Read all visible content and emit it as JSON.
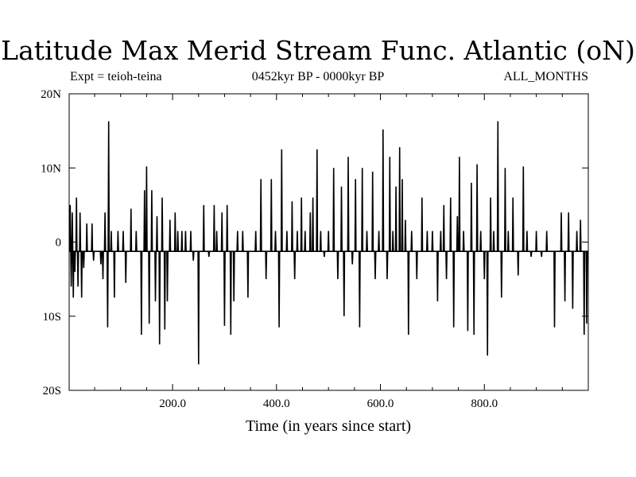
{
  "chart_data": {
    "type": "line",
    "title": "Latitude Max Merid Stream Func. Atlantic (oN)",
    "subtitle_left": "Expt = teioh-teina",
    "subtitle_center": "0452kyr BP - 0000kyr BP",
    "subtitle_right": "ALL_MONTHS",
    "xlabel": "Time (in years since start)",
    "ylabel": "",
    "xlim": [
      1,
      1000
    ],
    "ylim": [
      -20,
      20
    ],
    "x_ticks": [
      {
        "value": 200,
        "label": "200.0"
      },
      {
        "value": 400,
        "label": "400.0"
      },
      {
        "value": 600,
        "label": "600.0"
      },
      {
        "value": 800,
        "label": "800.0"
      }
    ],
    "y_ticks": [
      {
        "value": 20,
        "label": "20N"
      },
      {
        "value": 10,
        "label": "10N"
      },
      {
        "value": 0,
        "label": "0"
      },
      {
        "value": -10,
        "label": "10S"
      },
      {
        "value": -20,
        "label": "20S"
      }
    ],
    "baseline": -1.25,
    "spikes": [
      [
        3,
        5
      ],
      [
        5,
        -6
      ],
      [
        7,
        4
      ],
      [
        9,
        -7.5
      ],
      [
        12,
        -4
      ],
      [
        15,
        6
      ],
      [
        18,
        -6
      ],
      [
        22,
        4
      ],
      [
        25,
        -7.5
      ],
      [
        29,
        -3.5
      ],
      [
        35,
        2.5
      ],
      [
        45,
        2.5
      ],
      [
        48,
        -2.5
      ],
      [
        62,
        -3
      ],
      [
        66,
        -5
      ],
      [
        70,
        4
      ],
      [
        75,
        -11.5
      ],
      [
        77,
        16.3
      ],
      [
        82,
        1.5
      ],
      [
        88,
        -7.5
      ],
      [
        95,
        1.5
      ],
      [
        105,
        1.5
      ],
      [
        110,
        -5.5
      ],
      [
        120,
        4.5
      ],
      [
        130,
        1.5
      ],
      [
        140,
        -12.5
      ],
      [
        146,
        7
      ],
      [
        150,
        10.2
      ],
      [
        155,
        -11
      ],
      [
        160,
        7
      ],
      [
        167,
        -8
      ],
      [
        170,
        3.5
      ],
      [
        175,
        -13.8
      ],
      [
        180,
        6
      ],
      [
        185,
        -11.8
      ],
      [
        190,
        -8
      ],
      [
        195,
        3
      ],
      [
        205,
        4
      ],
      [
        210,
        1.5
      ],
      [
        218,
        1.5
      ],
      [
        225,
        1.5
      ],
      [
        235,
        1.5
      ],
      [
        240,
        -2.5
      ],
      [
        250,
        -16.5
      ],
      [
        260,
        5
      ],
      [
        270,
        -2
      ],
      [
        280,
        5
      ],
      [
        285,
        1.5
      ],
      [
        295,
        4
      ],
      [
        300,
        -11.3
      ],
      [
        305,
        5
      ],
      [
        312,
        -12.5
      ],
      [
        318,
        -8
      ],
      [
        325,
        1.5
      ],
      [
        335,
        1.5
      ],
      [
        345,
        -7.5
      ],
      [
        360,
        1.5
      ],
      [
        370,
        8.5
      ],
      [
        380,
        -5
      ],
      [
        390,
        8.5
      ],
      [
        398,
        1.5
      ],
      [
        405,
        -11.5
      ],
      [
        410,
        12.5
      ],
      [
        420,
        1.5
      ],
      [
        430,
        5.5
      ],
      [
        435,
        -5
      ],
      [
        440,
        1.5
      ],
      [
        448,
        6
      ],
      [
        455,
        1.5
      ],
      [
        465,
        4
      ],
      [
        470,
        6
      ],
      [
        478,
        12.5
      ],
      [
        485,
        1.5
      ],
      [
        492,
        -2
      ],
      [
        500,
        1.5
      ],
      [
        510,
        10
      ],
      [
        518,
        -5
      ],
      [
        525,
        7.5
      ],
      [
        530,
        -10
      ],
      [
        538,
        11.5
      ],
      [
        546,
        -3
      ],
      [
        552,
        8.5
      ],
      [
        560,
        -11.5
      ],
      [
        565,
        10
      ],
      [
        574,
        1.5
      ],
      [
        585,
        9.5
      ],
      [
        590,
        -5
      ],
      [
        597,
        1.5
      ],
      [
        605,
        15.2
      ],
      [
        613,
        -5
      ],
      [
        618,
        11.5
      ],
      [
        624,
        1.5
      ],
      [
        630,
        7.5
      ],
      [
        637,
        12.8
      ],
      [
        642,
        8.5
      ],
      [
        648,
        3
      ],
      [
        654,
        -12.5
      ],
      [
        660,
        1.5
      ],
      [
        670,
        -5
      ],
      [
        680,
        6
      ],
      [
        690,
        1.5
      ],
      [
        700,
        1.5
      ],
      [
        710,
        -8
      ],
      [
        716,
        1.5
      ],
      [
        722,
        5
      ],
      [
        727,
        -5
      ],
      [
        735,
        6
      ],
      [
        741,
        -11.5
      ],
      [
        748,
        3.5
      ],
      [
        752,
        11.5
      ],
      [
        760,
        1.5
      ],
      [
        768,
        -12
      ],
      [
        775,
        8
      ],
      [
        780,
        -12.5
      ],
      [
        786,
        10.5
      ],
      [
        793,
        1.5
      ],
      [
        800,
        -5
      ],
      [
        806,
        -15.3
      ],
      [
        812,
        6
      ],
      [
        818,
        1.5
      ],
      [
        826,
        16.3
      ],
      [
        833,
        -7.5
      ],
      [
        840,
        10
      ],
      [
        846,
        1.5
      ],
      [
        855,
        6
      ],
      [
        865,
        -4.5
      ],
      [
        875,
        10.2
      ],
      [
        882,
        1.5
      ],
      [
        890,
        -2
      ],
      [
        900,
        1.5
      ],
      [
        910,
        -2
      ],
      [
        920,
        1.5
      ],
      [
        935,
        -11.5
      ],
      [
        948,
        4
      ],
      [
        955,
        -8
      ],
      [
        962,
        4
      ],
      [
        970,
        -9
      ],
      [
        978,
        1.5
      ],
      [
        985,
        3
      ],
      [
        992,
        -12.5
      ],
      [
        997,
        -11
      ]
    ]
  }
}
